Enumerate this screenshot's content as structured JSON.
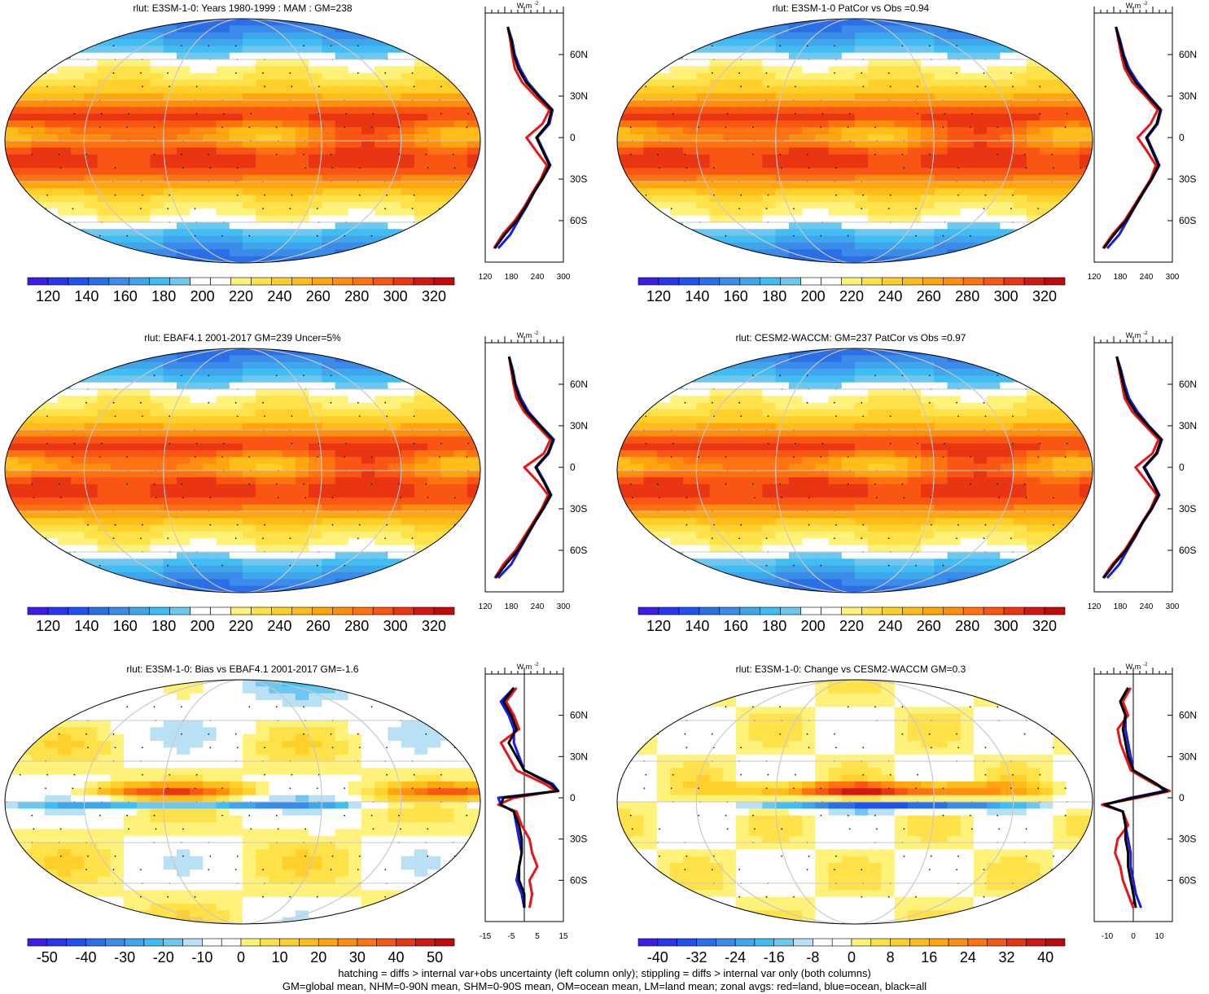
{
  "footer": {
    "line1": "hatching = diffs > internal var+obs uncertainty (left column only); stippling = diffs > internal var only (both columns)",
    "line2": "GM=global mean, NHM=0-90N mean, SHM=0-90S mean, OM=ocean mean, LM=land mean; zonal avgs: red=land, blue=ocean, black=all"
  },
  "colors": {
    "land": "#e8141a",
    "ocean": "#1a1ae8",
    "all": "#000000",
    "grid": "#c8c8c8",
    "hatch": "#222222",
    "stipple": "#222222"
  },
  "palettes": {
    "abs": [
      "#3a1ee6",
      "#2a35f0",
      "#1f52ee",
      "#2a6fe8",
      "#3b8ce8",
      "#3fa6ec",
      "#40bdf2",
      "#6ec7ee",
      "#ffffff",
      "#ffffff",
      "#fff27a",
      "#ffe24a",
      "#ffd02a",
      "#ffbd1a",
      "#ffa50f",
      "#ff8d10",
      "#ff7212",
      "#f95614",
      "#ea3512",
      "#d21814",
      "#c00a0a"
    ],
    "diff": [
      "#3a1ee6",
      "#2a35f0",
      "#1f52ee",
      "#2a6fe8",
      "#3b8ce8",
      "#3fa6ec",
      "#40bdf2",
      "#6ec7ee",
      "#b9e1f5",
      "#ffffff",
      "#ffffff",
      "#fff27a",
      "#ffe24a",
      "#ffd02a",
      "#ffbd1a",
      "#ffa50f",
      "#ff8d10",
      "#ff7212",
      "#f95614",
      "#ea3512",
      "#d21814",
      "#c00a0a"
    ]
  },
  "chart_data": [
    {
      "type": "heatmap",
      "title": "rlut: E3SM-1-0: Years 1980-1999 : MAM : GM=238",
      "colorbar": {
        "labels": [
          "120",
          "140",
          "160",
          "180",
          "200",
          "220",
          "240",
          "260",
          "280",
          "300",
          "320"
        ],
        "palette": "abs"
      },
      "profile": {
        "units": "W m",
        "units_sup": "-2",
        "xticks": [
          "120",
          "180",
          "240",
          "300"
        ],
        "xlim": [
          120,
          300
        ],
        "yticks": [
          "60N",
          "30N",
          "0",
          "30S",
          "60S"
        ],
        "lat": [
          80,
          70,
          60,
          50,
          40,
          30,
          20,
          10,
          0,
          -10,
          -20,
          -30,
          -40,
          -50,
          -60,
          -70,
          -80
        ],
        "land": [
          172,
          178,
          182,
          188,
          205,
          235,
          268,
          252,
          215,
          238,
          262,
          248,
          228,
          210,
          188,
          160,
          140
        ],
        "ocean": [
          172,
          182,
          188,
          200,
          218,
          245,
          275,
          268,
          240,
          255,
          270,
          252,
          232,
          215,
          196,
          178,
          150
        ],
        "all": [
          172,
          180,
          186,
          196,
          214,
          243,
          273,
          265,
          238,
          253,
          268,
          251,
          231,
          213,
          193,
          165,
          142
        ]
      },
      "field": "mam"
    },
    {
      "type": "heatmap",
      "title": "rlut: E3SM-1-0 PatCor vs Obs =0.94",
      "colorbar": {
        "labels": [
          "120",
          "140",
          "160",
          "180",
          "200",
          "220",
          "240",
          "260",
          "280",
          "300",
          "320"
        ],
        "palette": "abs"
      },
      "profile": {
        "units": "W m",
        "units_sup": "-2",
        "xticks": [
          "120",
          "180",
          "240",
          "300"
        ],
        "xlim": [
          120,
          300
        ],
        "yticks": [
          "60N",
          "30N",
          "0",
          "30S",
          "60S"
        ],
        "lat": [
          80,
          70,
          60,
          50,
          40,
          30,
          20,
          10,
          0,
          -10,
          -20,
          -30,
          -40,
          -50,
          -60,
          -70,
          -80
        ],
        "land": [
          170,
          176,
          182,
          190,
          208,
          238,
          266,
          250,
          220,
          242,
          262,
          250,
          230,
          210,
          190,
          162,
          140
        ],
        "ocean": [
          170,
          180,
          188,
          200,
          220,
          246,
          274,
          266,
          242,
          256,
          270,
          253,
          233,
          214,
          196,
          178,
          150
        ],
        "all": [
          170,
          178,
          186,
          196,
          215,
          244,
          272,
          264,
          240,
          254,
          268,
          252,
          232,
          213,
          193,
          166,
          142
        ]
      },
      "field": "mam"
    },
    {
      "type": "heatmap",
      "title": "rlut: EBAF4.1 2001-2017 GM=239 Uncer=5%",
      "colorbar": {
        "labels": [
          "120",
          "140",
          "160",
          "180",
          "200",
          "220",
          "240",
          "260",
          "280",
          "300",
          "320"
        ],
        "palette": "abs"
      },
      "profile": {
        "units": "W m",
        "units_sup": "-2",
        "xticks": [
          "120",
          "180",
          "240",
          "300"
        ],
        "xlim": [
          120,
          300
        ],
        "yticks": [
          "60N",
          "30N",
          "0",
          "30S",
          "60S"
        ],
        "lat": [
          80,
          70,
          60,
          50,
          40,
          30,
          20,
          10,
          0,
          -10,
          -20,
          -30,
          -40,
          -50,
          -60,
          -70,
          -80
        ],
        "land": [
          175,
          180,
          185,
          192,
          210,
          240,
          270,
          255,
          210,
          240,
          265,
          250,
          230,
          210,
          190,
          162,
          142
        ],
        "ocean": [
          175,
          184,
          190,
          202,
          220,
          248,
          278,
          266,
          238,
          256,
          272,
          254,
          234,
          216,
          198,
          180,
          150
        ],
        "all": [
          175,
          182,
          188,
          198,
          216,
          246,
          276,
          264,
          236,
          254,
          270,
          253,
          233,
          214,
          195,
          168,
          144
        ]
      },
      "field": "mam"
    },
    {
      "type": "heatmap",
      "title": "rlut: CESM2-WACCM: GM=237 PatCor vs Obs =0.97",
      "colorbar": {
        "labels": [
          "120",
          "140",
          "160",
          "180",
          "200",
          "220",
          "240",
          "260",
          "280",
          "300",
          "320"
        ],
        "palette": "abs"
      },
      "profile": {
        "units": "W m",
        "units_sup": "-2",
        "xticks": [
          "120",
          "180",
          "240",
          "300"
        ],
        "xlim": [
          120,
          300
        ],
        "yticks": [
          "60N",
          "30N",
          "0",
          "30S",
          "60S"
        ],
        "lat": [
          80,
          70,
          60,
          50,
          40,
          30,
          20,
          10,
          0,
          -10,
          -20,
          -30,
          -40,
          -50,
          -60,
          -70,
          -80
        ],
        "land": [
          172,
          178,
          184,
          190,
          208,
          238,
          268,
          254,
          215,
          240,
          264,
          250,
          230,
          210,
          190,
          162,
          140
        ],
        "ocean": [
          172,
          182,
          190,
          200,
          220,
          246,
          276,
          265,
          236,
          254,
          270,
          253,
          232,
          215,
          196,
          178,
          150
        ],
        "all": [
          172,
          180,
          187,
          196,
          215,
          244,
          274,
          263,
          234,
          252,
          268,
          252,
          231,
          213,
          193,
          166,
          142
        ]
      },
      "field": "mam"
    },
    {
      "type": "heatmap",
      "title": "rlut: E3SM-1-0: Bias vs EBAF4.1 2001-2017 GM=-1.6",
      "colorbar": {
        "labels": [
          "-50",
          "-40",
          "-30",
          "-20",
          "-10",
          "0",
          "10",
          "20",
          "30",
          "40",
          "50"
        ],
        "palette": "diff"
      },
      "profile": {
        "units": "W m",
        "units_sup": "-2",
        "xticks": [
          "-15",
          "-5",
          "5",
          "15"
        ],
        "xlim": [
          -15,
          15
        ],
        "yticks": [
          "60N",
          "30N",
          "0",
          "30S",
          "60S"
        ],
        "lat": [
          80,
          70,
          60,
          50,
          40,
          30,
          20,
          10,
          5,
          0,
          -5,
          -10,
          -20,
          -30,
          -40,
          -50,
          -60,
          -70,
          -80
        ],
        "land": [
          -3,
          -7,
          -4,
          -2,
          -9,
          -6,
          -3,
          8,
          12,
          -4,
          -10,
          -3,
          -1,
          2,
          3,
          5,
          2,
          3,
          2
        ],
        "ocean": [
          -4,
          -9,
          -6,
          -4,
          -4,
          -2,
          0,
          11,
          13,
          -10,
          -9,
          -4,
          -3,
          -2,
          -1,
          -2,
          -3,
          -1,
          0
        ],
        "all": [
          -4,
          -8,
          -5,
          -3,
          -6,
          -3,
          0,
          10,
          13,
          -8,
          -9,
          -4,
          -2,
          -1,
          -1,
          -2,
          -2,
          0,
          0
        ]
      },
      "field": "bias"
    },
    {
      "type": "heatmap",
      "title": "rlut: E3SM-1-0: Change vs CESM2-WACCM GM=0.3",
      "colorbar": {
        "labels": [
          "-40",
          "-32",
          "-24",
          "-16",
          "-8",
          "0",
          "8",
          "16",
          "24",
          "32",
          "40"
        ],
        "palette": "diff"
      },
      "profile": {
        "units": "W m",
        "units_sup": "-2",
        "xticks": [
          "-10",
          "0",
          "10"
        ],
        "xlim": [
          -15,
          15
        ],
        "yticks": [
          "60N",
          "30N",
          "0",
          "30S",
          "60S"
        ],
        "lat": [
          80,
          70,
          60,
          50,
          40,
          30,
          20,
          10,
          5,
          0,
          -5,
          -10,
          -20,
          -30,
          -40,
          -50,
          -60,
          -70,
          -80
        ],
        "land": [
          -1,
          -4,
          -2,
          -6,
          -5,
          -3,
          -1,
          8,
          14,
          2,
          -12,
          -4,
          -2,
          -6,
          -7,
          -5,
          -4,
          -2,
          0
        ],
        "ocean": [
          -2,
          -5,
          -3,
          -3,
          -2,
          -1,
          0,
          9,
          12,
          -1,
          -11,
          -4,
          -3,
          -2,
          -1,
          -1,
          0,
          1,
          3
        ],
        "all": [
          -2,
          -5,
          -3,
          -4,
          -3,
          -2,
          0,
          9,
          13,
          0,
          -11,
          -4,
          -3,
          -3,
          -2,
          -2,
          -1,
          0,
          1
        ]
      },
      "field": "change"
    }
  ]
}
